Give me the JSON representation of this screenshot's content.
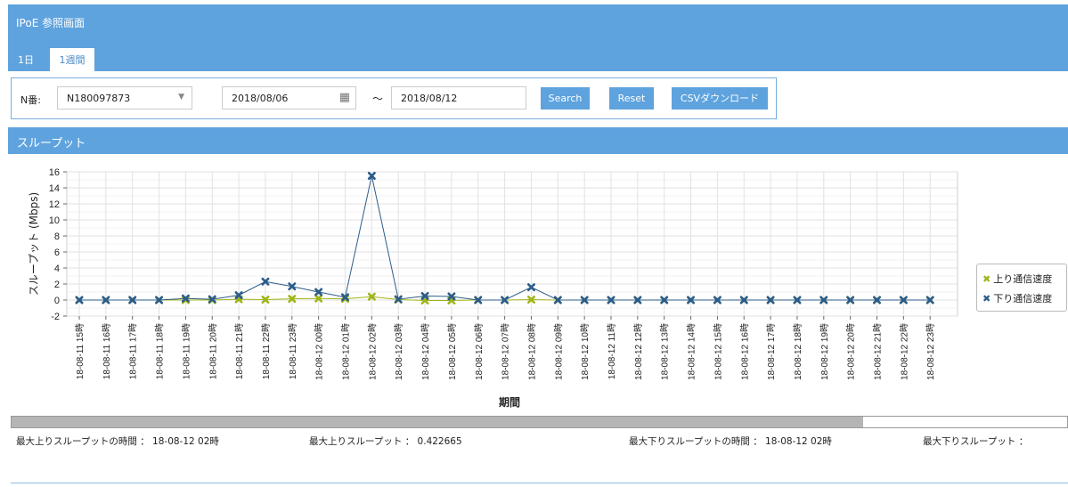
{
  "app": {
    "title": "IPoE 参照画面"
  },
  "tabs": [
    {
      "label": "1日"
    },
    {
      "label": "1週間"
    }
  ],
  "filter": {
    "n_label": "N番:",
    "n_value": "N180097873",
    "date_from": "2018/08/06",
    "tilde": "～",
    "date_to": "2018/08/12",
    "search_label": "Search",
    "reset_label": "Reset",
    "csv_label": "CSVダウンロード"
  },
  "section": {
    "title": "スループット"
  },
  "chart_data": {
    "type": "line",
    "ylabel": "スループット (Mbps)",
    "xlabel": "期間",
    "ylim": [
      -2,
      16
    ],
    "yticks": [
      -2,
      0,
      2,
      4,
      6,
      8,
      10,
      12,
      14,
      16
    ],
    "grid": true,
    "legend_position": "right",
    "categories": [
      "18-08-11 15時",
      "18-08-11 16時",
      "18-08-11 17時",
      "18-08-11 18時",
      "18-08-11 19時",
      "18-08-11 20時",
      "18-08-11 21時",
      "18-08-11 22時",
      "18-08-11 23時",
      "18-08-12 00時",
      "18-08-12 01時",
      "18-08-12 02時",
      "18-08-12 03時",
      "18-08-12 04時",
      "18-08-12 05時",
      "18-08-12 06時",
      "18-08-12 07時",
      "18-08-12 08時",
      "18-08-12 09時",
      "18-08-12 10時",
      "18-08-12 11時",
      "18-08-12 12時",
      "18-08-12 13時",
      "18-08-12 14時",
      "18-08-12 15時",
      "18-08-12 16時",
      "18-08-12 17時",
      "18-08-12 18時",
      "18-08-12 19時",
      "18-08-12 20時",
      "18-08-12 21時",
      "18-08-12 22時",
      "18-08-12 23時"
    ],
    "series": [
      {
        "name": "上り通信速度",
        "color": "#a0b418",
        "values": [
          0,
          0,
          0,
          0,
          0,
          0,
          0.1,
          0.05,
          0.15,
          0.2,
          0.15,
          0.42,
          0.05,
          -0.05,
          -0.05,
          0,
          0,
          0.05,
          0,
          0,
          0,
          0,
          0,
          0,
          0,
          0,
          0,
          0,
          0,
          0,
          0,
          0,
          0
        ]
      },
      {
        "name": "下り通信速度",
        "color": "#2c5c8a",
        "values": [
          0,
          0,
          0,
          0,
          0.2,
          0.1,
          0.6,
          2.3,
          1.7,
          1.0,
          0.35,
          15.5,
          0.1,
          0.5,
          0.45,
          0,
          0,
          1.6,
          0,
          0,
          0,
          0,
          0,
          0,
          0,
          0,
          0,
          0,
          0,
          0,
          0,
          0,
          0
        ]
      }
    ]
  },
  "stats": {
    "max_up_time": "最大上りスループットの時間 ： 18-08-12 02時",
    "max_up": "最大上りスループット ： 0.422665",
    "max_down_time": "最大下りスループットの時間 ： 18-08-12 02時",
    "max_down": "最大下りスループット ："
  }
}
